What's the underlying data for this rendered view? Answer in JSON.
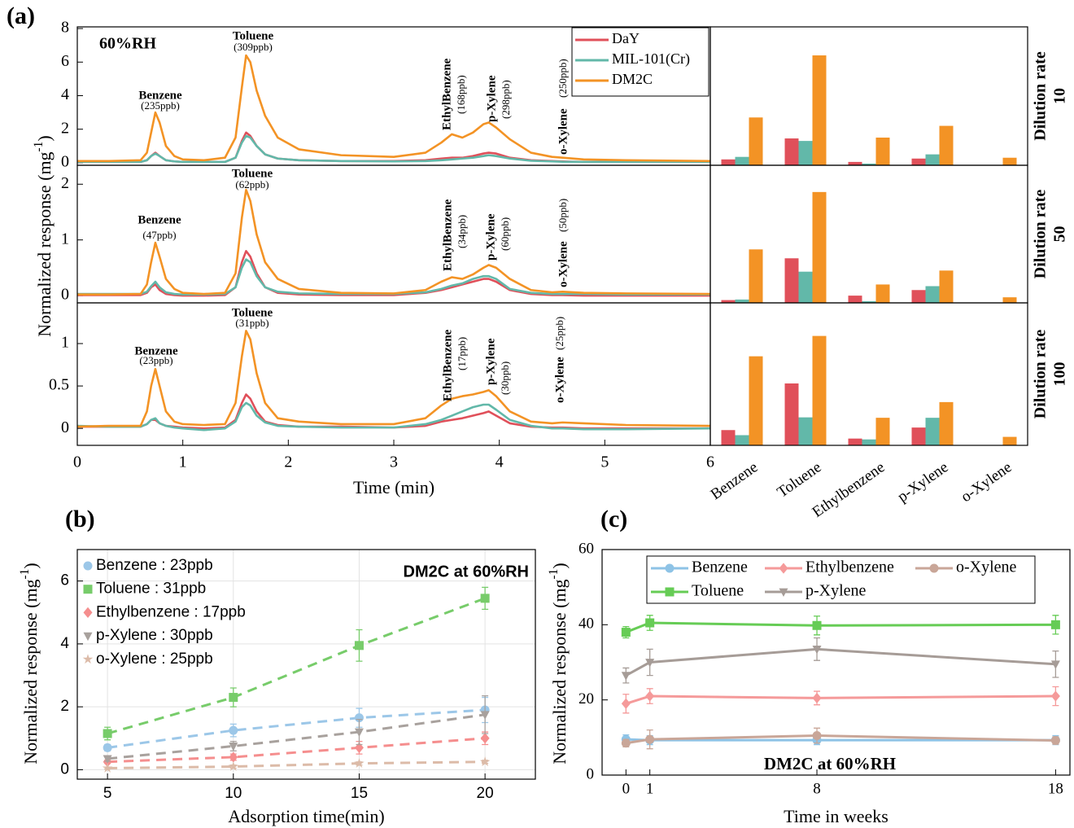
{
  "chart_data": [
    {
      "type": "line",
      "panel_label": "(a)",
      "condition": "60%RH",
      "x": [
        0,
        0.3,
        0.6,
        0.66,
        0.7,
        0.74,
        0.78,
        0.84,
        0.92,
        1.0,
        1.2,
        1.4,
        1.5,
        1.56,
        1.6,
        1.64,
        1.7,
        1.78,
        1.9,
        2.1,
        2.5,
        3.0,
        3.3,
        3.45,
        3.55,
        3.65,
        3.75,
        3.85,
        3.9,
        3.97,
        4.1,
        4.3,
        4.5,
        4.6,
        4.8,
        5.2,
        6.0
      ],
      "xlim": [
        0,
        6
      ],
      "ylim": [
        -0.15,
        8.1
      ],
      "yticks": [
        0,
        2,
        4,
        6,
        8
      ],
      "legend": "upper right",
      "series": [
        {
          "name": "DaY",
          "color": "#e0505a",
          "values": [
            0.05,
            0.05,
            0.05,
            0.15,
            0.4,
            0.6,
            0.4,
            0.15,
            0.08,
            0.05,
            0.05,
            0.05,
            0.3,
            1.3,
            1.8,
            1.6,
            1.0,
            0.5,
            0.25,
            0.15,
            0.1,
            0.1,
            0.15,
            0.25,
            0.3,
            0.3,
            0.4,
            0.55,
            0.6,
            0.55,
            0.3,
            0.15,
            0.1,
            0.08,
            0.05,
            0.05,
            0.05
          ]
        },
        {
          "name": "MIL-101(Cr)",
          "color": "#62b8a9",
          "values": [
            0.05,
            0.05,
            0.05,
            0.15,
            0.4,
            0.55,
            0.4,
            0.15,
            0.08,
            0.05,
            0.05,
            0.05,
            0.3,
            1.2,
            1.6,
            1.5,
            1.0,
            0.5,
            0.25,
            0.15,
            0.1,
            0.08,
            0.1,
            0.15,
            0.2,
            0.25,
            0.3,
            0.4,
            0.45,
            0.4,
            0.25,
            0.12,
            0.08,
            0.06,
            0.05,
            0.05,
            0.05
          ]
        },
        {
          "name": "DM2C",
          "color": "#f39325",
          "values": [
            0.1,
            0.1,
            0.15,
            0.6,
            1.8,
            3.0,
            2.4,
            1.0,
            0.4,
            0.2,
            0.15,
            0.3,
            1.5,
            4.5,
            6.4,
            6.0,
            4.3,
            2.8,
            1.5,
            0.8,
            0.45,
            0.35,
            0.6,
            1.2,
            1.7,
            1.5,
            1.8,
            2.3,
            2.4,
            2.1,
            1.4,
            0.6,
            0.35,
            0.3,
            0.2,
            0.15,
            0.1
          ]
        }
      ],
      "annotations": [
        {
          "label": "Benzene",
          "detail": "(235ppb)"
        },
        {
          "label": "Toluene",
          "detail": "(309ppb)"
        },
        {
          "label": "EthylBenzene",
          "detail": "(168ppb)"
        },
        {
          "label": "p-Xylene",
          "detail": "(298ppb)"
        },
        {
          "label": "o-Xylene",
          "detail": "(250ppb)"
        }
      ]
    },
    {
      "type": "line",
      "x": [
        0,
        0.3,
        0.6,
        0.66,
        0.7,
        0.74,
        0.78,
        0.84,
        0.92,
        1.0,
        1.2,
        1.4,
        1.5,
        1.56,
        1.6,
        1.64,
        1.7,
        1.78,
        1.9,
        2.1,
        2.5,
        3.0,
        3.3,
        3.45,
        3.55,
        3.65,
        3.75,
        3.85,
        3.9,
        3.97,
        4.1,
        4.3,
        4.5,
        4.6,
        4.8,
        5.2,
        6.0
      ],
      "xlim": [
        0,
        6
      ],
      "ylim": [
        -0.13,
        2.34
      ],
      "yticks": [
        0,
        1,
        2
      ],
      "ylabel": {
        "text": "Normalized response (mg",
        "sup": "-1",
        "close": ")"
      },
      "series": [
        {
          "color": "#e0505a",
          "values": [
            0.01,
            0.01,
            0.01,
            0.05,
            0.15,
            0.2,
            0.1,
            0.03,
            0.01,
            0,
            0,
            0.01,
            0.15,
            0.6,
            0.8,
            0.7,
            0.4,
            0.15,
            0.05,
            0.02,
            0.01,
            0.01,
            0.05,
            0.1,
            0.15,
            0.2,
            0.25,
            0.3,
            0.3,
            0.25,
            0.1,
            0.03,
            0.01,
            0.01,
            0,
            0,
            0
          ]
        },
        {
          "color": "#62b8a9",
          "values": [
            0.03,
            0.03,
            0.03,
            0.07,
            0.17,
            0.25,
            0.15,
            0.06,
            0.03,
            0.02,
            0.02,
            0.03,
            0.15,
            0.5,
            0.65,
            0.6,
            0.35,
            0.15,
            0.07,
            0.04,
            0.03,
            0.03,
            0.06,
            0.12,
            0.18,
            0.22,
            0.3,
            0.35,
            0.35,
            0.3,
            0.12,
            0.05,
            0.03,
            0.03,
            0.03,
            0.02,
            0.02
          ]
        },
        {
          "color": "#f39325",
          "values": [
            0.02,
            0.02,
            0.03,
            0.2,
            0.6,
            0.95,
            0.7,
            0.3,
            0.12,
            0.05,
            0.03,
            0.05,
            0.4,
            1.4,
            1.9,
            1.7,
            1.1,
            0.6,
            0.3,
            0.12,
            0.05,
            0.04,
            0.1,
            0.25,
            0.33,
            0.3,
            0.38,
            0.5,
            0.55,
            0.5,
            0.3,
            0.1,
            0.06,
            0.07,
            0.05,
            0.04,
            0.03
          ]
        }
      ],
      "annotations": [
        {
          "label": "Benzene",
          "detail": "(47ppb)"
        },
        {
          "label": "Toluene",
          "detail": "(62ppb)"
        },
        {
          "label": "EthylBenzene",
          "detail": "(34ppb)"
        },
        {
          "label": "p-Xylene",
          "detail": "(60ppb)"
        },
        {
          "label": "o-Xylene",
          "detail": "(50ppb)"
        }
      ]
    },
    {
      "type": "line",
      "x": [
        0,
        0.3,
        0.6,
        0.66,
        0.7,
        0.74,
        0.78,
        0.84,
        0.92,
        1.0,
        1.2,
        1.4,
        1.5,
        1.56,
        1.6,
        1.64,
        1.7,
        1.78,
        1.9,
        2.1,
        2.5,
        3.0,
        3.3,
        3.45,
        3.55,
        3.65,
        3.75,
        3.85,
        3.9,
        3.97,
        4.1,
        4.3,
        4.5,
        4.6,
        4.8,
        5.2,
        6.0
      ],
      "xlim": [
        0,
        6
      ],
      "ylim": [
        -0.2,
        1.48
      ],
      "yticks": [
        0,
        0.5,
        1
      ],
      "xticks": [
        0,
        1,
        2,
        3,
        4,
        5,
        6
      ],
      "xlabel": "Time (min)",
      "series": [
        {
          "color": "#e0505a",
          "values": [
            0.02,
            0.02,
            0.02,
            0.05,
            0.1,
            0.1,
            0.06,
            0.03,
            0.02,
            0.01,
            0,
            0.01,
            0.1,
            0.3,
            0.4,
            0.35,
            0.2,
            0.08,
            0.04,
            0.02,
            0.02,
            0.01,
            0.03,
            0.08,
            0.1,
            0.12,
            0.15,
            0.18,
            0.2,
            0.15,
            0.06,
            0.02,
            0.01,
            0.01,
            0,
            0,
            0
          ]
        },
        {
          "color": "#62b8a9",
          "values": [
            0.03,
            0.02,
            0.02,
            0.05,
            0.1,
            0.12,
            0.06,
            0.03,
            0.01,
            0,
            -0.02,
            0,
            0.08,
            0.25,
            0.3,
            0.27,
            0.15,
            0.07,
            0.03,
            0.02,
            0.01,
            0.01,
            0.05,
            0.1,
            0.15,
            0.2,
            0.25,
            0.28,
            0.28,
            0.22,
            0.1,
            0.03,
            0,
            0,
            -0.01,
            -0.01,
            0
          ]
        },
        {
          "color": "#f39325",
          "values": [
            0.02,
            0.03,
            0.03,
            0.2,
            0.5,
            0.7,
            0.5,
            0.2,
            0.08,
            0.05,
            0.04,
            0.05,
            0.3,
            0.85,
            1.15,
            1.05,
            0.65,
            0.3,
            0.12,
            0.08,
            0.05,
            0.05,
            0.12,
            0.27,
            0.35,
            0.38,
            0.4,
            0.43,
            0.45,
            0.38,
            0.2,
            0.08,
            0.06,
            0.07,
            0.06,
            0.04,
            0.03
          ]
        }
      ],
      "annotations": [
        {
          "label": "Benzene",
          "detail": "(23ppb)"
        },
        {
          "label": "Toluene",
          "detail": "(31ppb)"
        },
        {
          "label": "EthylBenzene",
          "detail": "(17ppb)"
        },
        {
          "label": "p-Xylene",
          "detail": "(30ppb)"
        },
        {
          "label": "o-Xylene",
          "detail": "(25ppb)"
        }
      ]
    },
    {
      "type": "bar",
      "ylim": [
        -0.15,
        8.1
      ],
      "side_label": [
        "Dilution rate",
        "10"
      ],
      "series": [
        {
          "color": "#e0505a",
          "values": [
            0.2,
            1.45,
            0.05,
            0.25,
            null
          ]
        },
        {
          "color": "#62b8a9",
          "values": [
            0.35,
            1.3,
            -0.05,
            0.5,
            null
          ]
        },
        {
          "color": "#f39325",
          "values": [
            2.7,
            6.4,
            1.5,
            2.2,
            0.3
          ]
        }
      ]
    },
    {
      "type": "bar",
      "ylim": [
        -0.13,
        2.34
      ],
      "side_label": [
        "Dilution rate",
        "50"
      ],
      "series": [
        {
          "color": "#e0505a",
          "values": [
            -0.08,
            0.67,
            0.0,
            0.1,
            null
          ]
        },
        {
          "color": "#62b8a9",
          "values": [
            -0.07,
            0.43,
            -0.1,
            0.17,
            null
          ]
        },
        {
          "color": "#f39325",
          "values": [
            0.83,
            1.86,
            0.2,
            0.45,
            -0.03
          ]
        }
      ]
    },
    {
      "type": "bar",
      "ylim": [
        -0.2,
        1.48
      ],
      "side_label": [
        "Dilution rate",
        "100"
      ],
      "categories": [
        "Benzene",
        "Toluene",
        "Ethylbenzene",
        "p-Xylene",
        "o-Xylene"
      ],
      "series": [
        {
          "color": "#e0505a",
          "values": [
            -0.02,
            0.53,
            -0.12,
            0.01,
            null
          ]
        },
        {
          "color": "#62b8a9",
          "values": [
            -0.08,
            0.13,
            -0.13,
            0.125,
            null
          ]
        },
        {
          "color": "#f39325",
          "values": [
            0.85,
            1.09,
            0.125,
            0.31,
            -0.1
          ]
        }
      ]
    },
    {
      "type": "line",
      "panel_label": "(b)",
      "annotation": "DM2C at 60%RH",
      "line_style": "dashed",
      "grid": true,
      "x": [
        5,
        10,
        15,
        20
      ],
      "xlim": [
        3.8,
        22
      ],
      "ylim": [
        -0.3,
        7
      ],
      "xticks": [
        5,
        10,
        15,
        20
      ],
      "yticks": [
        0,
        2,
        4,
        6
      ],
      "xlabel": "Adsorption time(min)",
      "ylabel": {
        "text": "Normalized response (mg",
        "sup": "-1",
        "close": ")"
      },
      "series": [
        {
          "name": "Benzene : 23ppb",
          "color": "#9cc7e8",
          "marker": "circle",
          "values": [
            0.7,
            1.25,
            1.65,
            1.9
          ],
          "errors": [
            0.1,
            0.2,
            0.3,
            0.4
          ]
        },
        {
          "name": "Toluene : 31ppb",
          "color": "#77cc6a",
          "marker": "square",
          "values": [
            1.15,
            2.3,
            3.95,
            5.45
          ],
          "errors": [
            0.2,
            0.3,
            0.5,
            0.35
          ]
        },
        {
          "name": "Ethylbenzene : 17ppb",
          "color": "#f58e8e",
          "marker": "diamond",
          "values": [
            0.25,
            0.4,
            0.7,
            1.0
          ],
          "errors": [
            0.05,
            0.1,
            0.2,
            0.2
          ]
        },
        {
          "name": "p-Xylene : 30ppb",
          "color": "#a8a19d",
          "marker": "triangle-down",
          "values": [
            0.35,
            0.75,
            1.2,
            1.75
          ],
          "errors": [
            0.08,
            0.15,
            0.4,
            0.6
          ]
        },
        {
          "name": "o-Xylene : 25ppb",
          "color": "#dcbba8",
          "marker": "star",
          "values": [
            0.05,
            0.1,
            0.2,
            0.25
          ],
          "errors": [
            0.03,
            0.05,
            0.05,
            0.05
          ]
        }
      ]
    },
    {
      "type": "line",
      "panel_label": "(c)",
      "annotation": "DM2C at 60%RH",
      "line_style": "solid",
      "grid": false,
      "x": [
        0,
        1,
        8,
        18
      ],
      "xlim": [
        -1,
        18.6
      ],
      "ylim": [
        0,
        60
      ],
      "xticks": [
        0,
        1,
        8,
        18
      ],
      "yticks": [
        0,
        20,
        40,
        60
      ],
      "xlabel": "Time in weeks",
      "ylabel": {
        "text": "Normalized response (mg",
        "sup": "-1",
        "close": ")"
      },
      "series": [
        {
          "name": "Benzene",
          "color": "#8ec3e6",
          "marker": "circle",
          "values": [
            9.5,
            9.3,
            9.3,
            9.3
          ],
          "errors": [
            1.2,
            1.2,
            1.2,
            1.2
          ]
        },
        {
          "name": "Toluene",
          "color": "#66cc55",
          "marker": "square",
          "values": [
            38,
            40.5,
            39.8,
            40
          ],
          "errors": [
            1.5,
            2,
            2.5,
            2.5
          ]
        },
        {
          "name": "Ethylbenzene",
          "color": "#f59a9a",
          "marker": "diamond",
          "values": [
            19,
            21,
            20.5,
            21
          ],
          "errors": [
            2.5,
            2,
            1.8,
            2.5
          ]
        },
        {
          "name": "p-Xylene",
          "color": "#a69c97",
          "marker": "triangle-down",
          "values": [
            26.5,
            30,
            33.5,
            29.5
          ],
          "errors": [
            2,
            3.5,
            3,
            3.5
          ]
        },
        {
          "name": "o-Xylene",
          "color": "#c9a698",
          "marker": "circle",
          "values": [
            8.5,
            9.5,
            10.5,
            9.2
          ],
          "errors": [
            1,
            2.5,
            2,
            1
          ]
        }
      ]
    }
  ]
}
